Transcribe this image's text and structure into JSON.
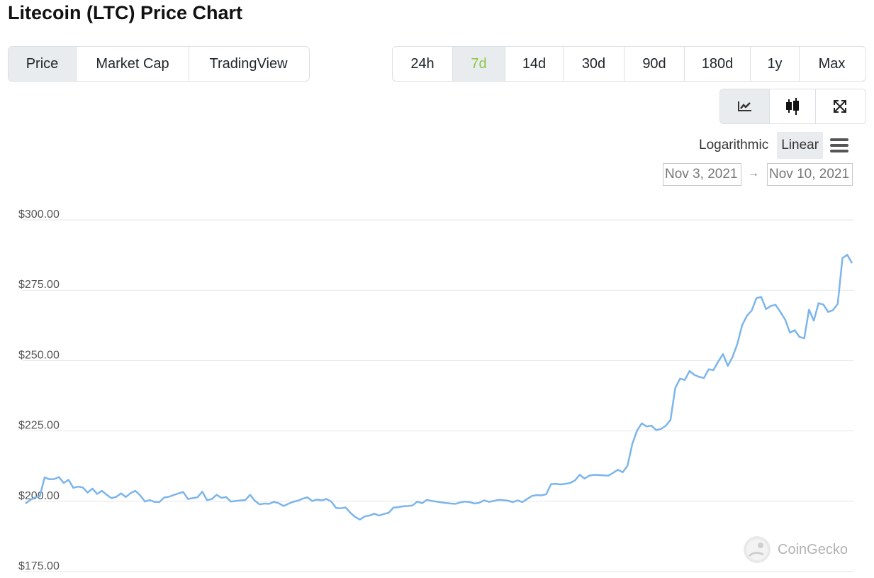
{
  "title": "Litecoin (LTC) Price Chart",
  "tabs": [
    "Price",
    "Market Cap",
    "TradingView"
  ],
  "active_tab": "Price",
  "ranges": [
    "24h",
    "7d",
    "14d",
    "30d",
    "90d",
    "180d",
    "1y",
    "Max"
  ],
  "active_range": "7d",
  "view_icons": [
    "line-chart-icon",
    "candlestick-icon",
    "fullscreen-icon"
  ],
  "scale": {
    "log_label": "Logarithmic",
    "linear_label": "Linear",
    "active": "Linear"
  },
  "date_range": {
    "from": "Nov 3, 2021",
    "arrow": "→",
    "to": "Nov 10, 2021"
  },
  "watermark": "CoinGecko",
  "colors": {
    "line": "#7cb5ec",
    "active_range_text": "#8dc647",
    "active_bg": "#e9ecef"
  },
  "chart_data": {
    "type": "line",
    "title": "",
    "xlabel": "",
    "ylabel": "",
    "y_ticks": [
      "$300.00",
      "$275.00",
      "$250.00",
      "$225.00",
      "$200.00",
      "$175.00"
    ],
    "ylim": [
      175,
      300
    ],
    "x_start": "Nov 3, 2021",
    "x_end": "Nov 10, 2021",
    "grid": true,
    "series": [
      {
        "values": [
          199.2,
          200.5,
          201.3,
          201.8,
          208.5,
          207.8,
          207.9,
          208.6,
          206.5,
          207.6,
          204.8,
          205.2,
          204.9,
          203.1,
          204.5,
          202.6,
          203.7,
          202.3,
          201.1,
          201.6,
          202.8,
          201.5,
          202.9,
          203.7,
          202.1,
          199.9,
          200.4,
          199.8,
          199.7,
          201.3,
          201.6,
          202.2,
          202.8,
          203.3,
          200.8,
          201.1,
          201.4,
          203.4,
          200.4,
          200.8,
          202.3,
          201.2,
          201.5,
          199.9,
          200.1,
          200.3,
          200.4,
          202.3,
          200.2,
          198.9,
          199.2,
          199.1,
          199.8,
          199.3,
          198.3,
          199.1,
          199.8,
          200.2,
          200.9,
          201.4,
          200.1,
          200.6,
          200.3,
          200.8,
          199.9,
          197.6,
          197.5,
          197.8,
          195.9,
          194.4,
          193.5,
          194.6,
          194.9,
          195.6,
          194.9,
          195.5,
          195.9,
          197.7,
          197.9,
          198.2,
          198.3,
          198.5,
          199.9,
          199.3,
          200.5,
          200.1,
          199.9,
          199.6,
          199.4,
          199.2,
          199.1,
          199.6,
          199.9,
          199.7,
          199.2,
          199.5,
          200.3,
          199.8,
          200.1,
          200.5,
          200.4,
          200.2,
          199.7,
          200.3,
          199.7,
          200.8,
          201.9,
          202.2,
          202.1,
          202.5,
          206.1,
          206.2,
          206.0,
          206.2,
          206.5,
          207.4,
          209.4,
          208.1,
          209.1,
          209.4,
          209.3,
          209.2,
          209.1,
          210.1,
          211.2,
          210.3,
          212.6,
          220.3,
          225.1,
          227.7,
          226.6,
          226.9,
          225.3,
          225.7,
          226.8,
          228.9,
          240.2,
          243.6,
          243.1,
          246.3,
          244.9,
          244.2,
          243.8,
          246.9,
          246.6,
          249.7,
          252.3,
          248.1,
          251.3,
          255.9,
          262.6,
          265.9,
          267.8,
          272.2,
          272.6,
          268.3,
          269.4,
          269.8,
          267.3,
          264.6,
          259.9,
          260.8,
          258.4,
          257.9,
          268.1,
          264.2,
          270.4,
          269.9,
          267.3,
          267.9,
          270.1,
          286.4,
          287.6,
          284.6
        ]
      }
    ]
  }
}
